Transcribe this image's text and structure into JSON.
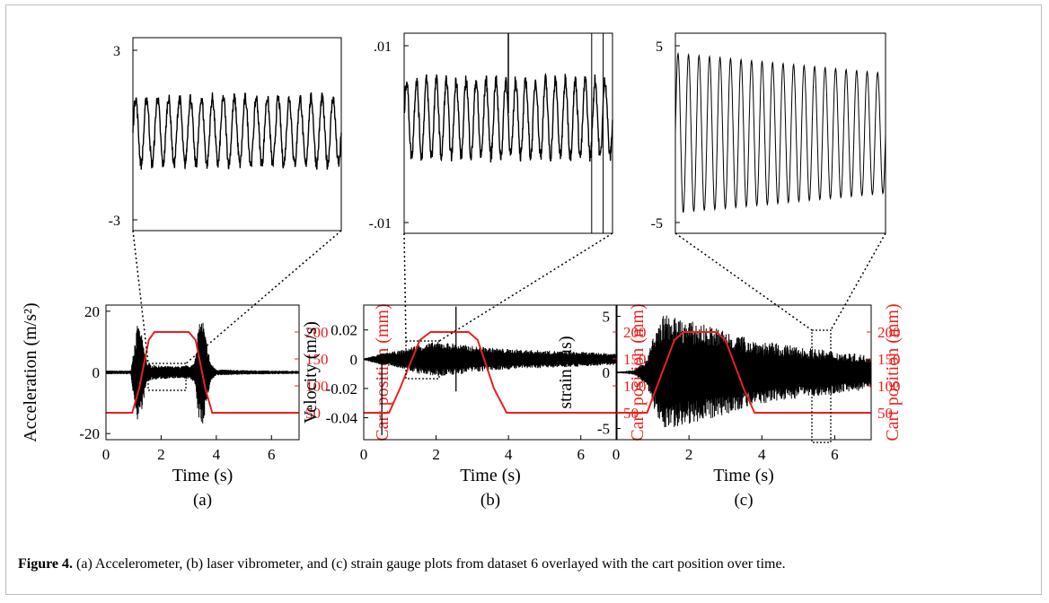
{
  "caption": {
    "label": "Figure 4.",
    "text": " (a) Accelerometer, (b) laser vibrometer, and (c) strain gauge plots from dataset 6 overlayed with the cart position over time."
  },
  "colors": {
    "signal": "#000000",
    "cart": "#e8211d",
    "frame": "#bdbdbd"
  },
  "chart_data": [
    {
      "id": "a",
      "type": "line",
      "panel_label": "(a)",
      "xlabel": "Time (s)",
      "ylabel": "Acceleration (m/s²)",
      "y2label": "Cart position (mm)",
      "xticks": [
        "0",
        "2",
        "4",
        "6"
      ],
      "yticks": [
        "-20",
        "0",
        "20"
      ],
      "y2ticks": [
        "50",
        "100",
        "150",
        "200"
      ],
      "xlim": [
        0,
        7
      ],
      "ylim": [
        -22,
        22
      ],
      "y2lim": [
        0,
        250
      ],
      "series": [
        {
          "values_desc": "acceleration signal",
          "x": [
            0,
            0.9,
            1.0,
            1.15,
            1.3,
            1.5,
            1.7,
            2.0,
            2.5,
            3.0,
            3.2,
            3.35,
            3.5,
            3.65,
            3.8,
            4.0,
            5,
            6,
            7
          ],
          "amp": [
            0.6,
            0.6,
            8,
            16,
            12,
            3,
            2.5,
            2.2,
            2.0,
            2.2,
            3,
            15,
            18,
            10,
            3,
            1.0,
            0.7,
            0.6,
            0.5
          ]
        },
        {
          "values_desc": "cart position",
          "x": [
            0,
            0.95,
            1.2,
            1.55,
            1.75,
            3.0,
            3.25,
            3.6,
            3.85,
            7
          ],
          "y": [
            50,
            50,
            95,
            185,
            200,
            200,
            185,
            95,
            50,
            50
          ]
        }
      ],
      "inset": {
        "yticks": [
          "3",
          "-3"
        ],
        "ylim": [
          -3.2,
          3.2
        ],
        "cycles": 19,
        "amp": 1.1,
        "offset": 0.1
      }
    },
    {
      "id": "b",
      "type": "line",
      "panel_label": "(b)",
      "xlabel": "Time (s)",
      "ylabel": "Velocity (m/s)",
      "y2label": "Cart position (mm)",
      "xticks": [
        "0",
        "2",
        "4",
        "6"
      ],
      "yticks": [
        "-0.04",
        "-0.02",
        "0",
        "0.02"
      ],
      "y2ticks": [
        "50",
        "100",
        "150",
        "200"
      ],
      "xlim": [
        0,
        7
      ],
      "ylim": [
        -0.055,
        0.037
      ],
      "y2lim": [
        0,
        250
      ],
      "series": [
        {
          "values_desc": "velocity signal",
          "x": [
            0,
            0.5,
            1.0,
            1.5,
            2.0,
            2.5,
            3.0,
            3.5,
            4.0,
            5.0,
            6.0,
            7.0
          ],
          "amp": [
            0.0005,
            0.004,
            0.006,
            0.01,
            0.012,
            0.011,
            0.009,
            0.008,
            0.007,
            0.006,
            0.005,
            0.004
          ]
        },
        {
          "values_desc": "cart position",
          "x": [
            0,
            0.7,
            1.0,
            1.55,
            1.85,
            2.9,
            3.15,
            3.6,
            3.95,
            7
          ],
          "y": [
            50,
            50,
            95,
            185,
            200,
            200,
            185,
            95,
            50,
            50
          ]
        }
      ],
      "inset": {
        "yticks": [
          ".01",
          "-.01"
        ],
        "ylim": [
          -0.01,
          0.01
        ],
        "cycles": 21,
        "amp": 0.0038,
        "offset": 0.0015
      }
    },
    {
      "id": "c",
      "type": "line",
      "panel_label": "(c)",
      "xlabel": "Time (s)",
      "ylabel": "strain (μs)",
      "y2label": "Cart position (mm)",
      "xticks": [
        "0",
        "2",
        "4",
        "6"
      ],
      "yticks": [
        "-5",
        "0",
        "5"
      ],
      "y2ticks": [
        "50",
        "100",
        "150",
        "200"
      ],
      "xlim": [
        0,
        7
      ],
      "ylim": [
        -6,
        6
      ],
      "y2lim": [
        0,
        250
      ],
      "series": [
        {
          "values_desc": "strain signal",
          "x": [
            0,
            0.5,
            0.8,
            1.0,
            1.3,
            1.7,
            2.0,
            2.5,
            3.0,
            3.5,
            4.0,
            5.0,
            6.0,
            7.0
          ],
          "amp": [
            0.05,
            0.2,
            1.0,
            3.0,
            5.2,
            4.8,
            4.6,
            4.2,
            3.8,
            3.2,
            2.8,
            2.3,
            1.9,
            1.5
          ]
        },
        {
          "values_desc": "cart position",
          "x": [
            0,
            0.85,
            1.1,
            1.6,
            1.85,
            2.75,
            3.0,
            3.5,
            3.8,
            7
          ],
          "y": [
            50,
            50,
            95,
            185,
            200,
            200,
            185,
            95,
            50,
            50
          ]
        }
      ],
      "inset": {
        "yticks": [
          "5",
          "-5"
        ],
        "ylim": [
          -5.5,
          5.5
        ],
        "cycles": 20,
        "amp_start": 4.4,
        "amp_end": 3.3,
        "offset": 0
      }
    }
  ]
}
